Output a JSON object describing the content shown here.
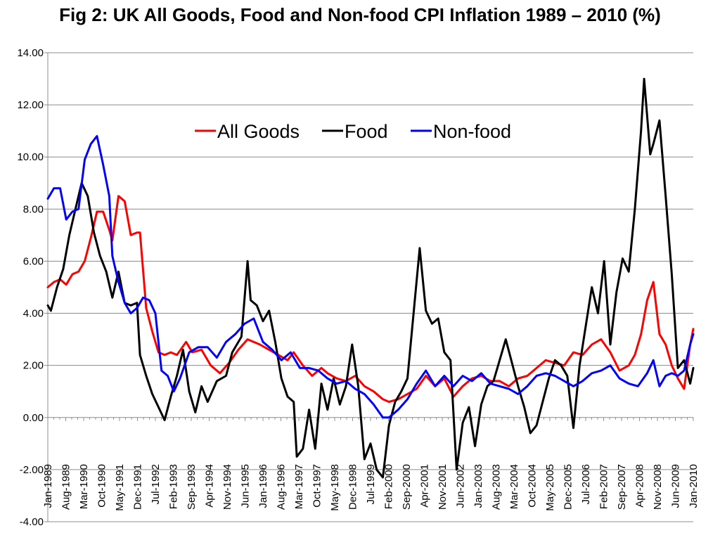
{
  "chart_data": {
    "type": "line",
    "title": "Fig 2: UK All Goods, Food and Non-food CPI Inflation 1989 – 2010 (%)",
    "xlabel": "",
    "ylabel": "",
    "xlim": [
      1989.0,
      2010.0
    ],
    "ylim": [
      -4.0,
      14.0
    ],
    "y_ticks": [
      -4.0,
      -2.0,
      0.0,
      2.0,
      4.0,
      6.0,
      8.0,
      10.0,
      12.0,
      14.0
    ],
    "y_tick_labels": [
      "-4.00",
      "-2.00",
      "0.00",
      "2.00",
      "4.00",
      "6.00",
      "8.00",
      "10.00",
      "12.00",
      "14.00"
    ],
    "x_tick_labels": [
      "Jan-1989",
      "Aug-1989",
      "Mar-1990",
      "Oct-1990",
      "May-1991",
      "Dec-1991",
      "Jul-1992",
      "Feb-1993",
      "Sep-1993",
      "Apr-1994",
      "Nov-1994",
      "Jun-1995",
      "Jan-1996",
      "Aug-1996",
      "Mar-1997",
      "Oct-1997",
      "May-1998",
      "Dec-1998",
      "Jul-1999",
      "Feb-2000",
      "Sep-2000",
      "Apr-2001",
      "Nov-2001",
      "Jun-2002",
      "Jan-2003",
      "Aug-2003",
      "Mar-2004",
      "Oct-2004",
      "May-2005",
      "Dec-2005",
      "Jul-2006",
      "Feb-2007",
      "Sep-2007",
      "Apr-2008",
      "Nov-2008",
      "Jun-2009",
      "Jan-2010"
    ],
    "grid": true,
    "legend": "top-center",
    "series": [
      {
        "name": "All Goods",
        "color": "#ff0000",
        "x": [
          1989.0,
          1989.2,
          1989.4,
          1989.6,
          1989.8,
          1990.0,
          1990.2,
          1990.4,
          1990.6,
          1990.8,
          1991.0,
          1991.1,
          1991.3,
          1991.5,
          1991.7,
          1991.9,
          1992.0,
          1992.2,
          1992.4,
          1992.6,
          1992.8,
          1993.0,
          1993.2,
          1993.5,
          1993.7,
          1994.0,
          1994.3,
          1994.6,
          1994.9,
          1995.2,
          1995.5,
          1995.9,
          1996.2,
          1996.5,
          1996.8,
          1997.0,
          1997.3,
          1997.6,
          1997.9,
          1998.1,
          1998.4,
          1998.7,
          1999.0,
          1999.3,
          1999.6,
          1999.9,
          2000.1,
          2000.4,
          2000.7,
          2001.0,
          2001.3,
          2001.6,
          2001.9,
          2002.2,
          2002.5,
          2002.8,
          2003.1,
          2003.4,
          2003.7,
          2004.0,
          2004.3,
          2004.6,
          2004.9,
          2005.2,
          2005.5,
          2005.8,
          2006.1,
          2006.4,
          2006.7,
          2007.0,
          2007.3,
          2007.6,
          2007.9,
          2008.1,
          2008.3,
          2008.5,
          2008.7,
          2008.9,
          2009.1,
          2009.3,
          2009.5,
          2009.7,
          2009.9,
          2010.0
        ],
        "values": [
          5.0,
          5.2,
          5.3,
          5.1,
          5.5,
          5.6,
          6.0,
          6.9,
          7.9,
          7.9,
          7.2,
          6.8,
          8.5,
          8.3,
          7.0,
          7.1,
          7.1,
          4.2,
          3.3,
          2.5,
          2.4,
          2.5,
          2.4,
          2.9,
          2.5,
          2.6,
          2.0,
          1.7,
          2.1,
          2.6,
          3.0,
          2.8,
          2.6,
          2.4,
          2.2,
          2.5,
          2.0,
          1.6,
          1.9,
          1.7,
          1.5,
          1.4,
          1.6,
          1.2,
          1.0,
          0.7,
          0.6,
          0.7,
          0.9,
          1.1,
          1.6,
          1.2,
          1.5,
          0.8,
          1.2,
          1.5,
          1.6,
          1.4,
          1.4,
          1.2,
          1.5,
          1.6,
          1.9,
          2.2,
          2.1,
          2.0,
          2.5,
          2.4,
          2.8,
          3.0,
          2.5,
          1.8,
          2.0,
          2.4,
          3.2,
          4.5,
          5.2,
          3.2,
          2.8,
          2.0,
          1.5,
          1.1,
          2.8,
          3.4
        ]
      },
      {
        "name": "Food",
        "color": "#000000",
        "x": [
          1989.0,
          1989.1,
          1989.3,
          1989.5,
          1989.7,
          1989.9,
          1990.1,
          1990.3,
          1990.5,
          1990.7,
          1990.9,
          1991.1,
          1991.3,
          1991.5,
          1991.7,
          1991.9,
          1992.0,
          1992.2,
          1992.4,
          1992.6,
          1992.8,
          1993.0,
          1993.2,
          1993.4,
          1993.6,
          1993.8,
          1994.0,
          1994.2,
          1994.5,
          1994.8,
          1995.0,
          1995.3,
          1995.5,
          1995.6,
          1995.8,
          1996.0,
          1996.2,
          1996.4,
          1996.6,
          1996.8,
          1997.0,
          1997.1,
          1997.3,
          1997.5,
          1997.7,
          1997.9,
          1998.1,
          1998.3,
          1998.5,
          1998.7,
          1998.9,
          1999.1,
          1999.3,
          1999.5,
          1999.7,
          1999.9,
          2000.1,
          2000.3,
          2000.5,
          2000.7,
          2000.9,
          2001.1,
          2001.3,
          2001.5,
          2001.7,
          2001.9,
          2002.1,
          2002.3,
          2002.5,
          2002.7,
          2002.9,
          2003.1,
          2003.3,
          2003.5,
          2003.7,
          2003.9,
          2004.1,
          2004.3,
          2004.5,
          2004.7,
          2004.9,
          2005.1,
          2005.3,
          2005.5,
          2005.7,
          2005.9,
          2006.1,
          2006.3,
          2006.5,
          2006.7,
          2006.9,
          2007.1,
          2007.3,
          2007.5,
          2007.7,
          2007.9,
          2008.1,
          2008.3,
          2008.4,
          2008.6,
          2008.7,
          2008.9,
          2009.1,
          2009.3,
          2009.5,
          2009.7,
          2009.9,
          2010.0
        ],
        "values": [
          4.3,
          4.1,
          5.0,
          5.7,
          7.0,
          8.0,
          9.0,
          8.5,
          7.1,
          6.2,
          5.6,
          4.6,
          5.6,
          4.4,
          4.3,
          4.4,
          2.4,
          1.6,
          0.9,
          0.4,
          -0.1,
          0.8,
          1.6,
          2.6,
          1.0,
          0.2,
          1.2,
          0.6,
          1.4,
          1.6,
          2.5,
          3.1,
          6.0,
          4.5,
          4.3,
          3.7,
          4.1,
          2.9,
          1.5,
          0.8,
          0.6,
          -1.5,
          -1.2,
          0.3,
          -1.2,
          1.3,
          0.3,
          1.5,
          0.5,
          1.2,
          2.8,
          1.2,
          -1.6,
          -1.0,
          -2.0,
          -2.3,
          -0.3,
          0.6,
          1.0,
          1.5,
          4.0,
          6.5,
          4.1,
          3.6,
          3.8,
          2.5,
          2.2,
          -2.0,
          -0.2,
          0.4,
          -1.1,
          0.5,
          1.2,
          1.4,
          2.2,
          3.0,
          2.1,
          1.2,
          0.4,
          -0.6,
          -0.3,
          0.6,
          1.5,
          2.2,
          2.0,
          1.6,
          -0.4,
          2.0,
          3.5,
          5.0,
          4.0,
          6.0,
          2.8,
          4.8,
          6.1,
          5.6,
          8.0,
          11.0,
          13.0,
          10.1,
          10.5,
          11.4,
          8.5,
          5.5,
          1.9,
          2.2,
          1.3,
          1.9
        ]
      },
      {
        "name": "Non-food",
        "color": "#0000ff",
        "x": [
          1989.0,
          1989.2,
          1989.4,
          1989.6,
          1989.8,
          1990.0,
          1990.2,
          1990.4,
          1990.6,
          1990.8,
          1991.0,
          1991.1,
          1991.3,
          1991.5,
          1991.7,
          1991.9,
          1992.1,
          1992.3,
          1992.5,
          1992.7,
          1992.9,
          1993.1,
          1993.3,
          1993.6,
          1993.9,
          1994.2,
          1994.5,
          1994.8,
          1995.1,
          1995.4,
          1995.7,
          1996.0,
          1996.3,
          1996.6,
          1996.9,
          1997.2,
          1997.5,
          1997.8,
          1998.1,
          1998.4,
          1998.7,
          1999.0,
          1999.3,
          1999.6,
          1999.9,
          2000.1,
          2000.4,
          2000.7,
          2001.0,
          2001.3,
          2001.6,
          2001.9,
          2002.2,
          2002.5,
          2002.8,
          2003.1,
          2003.4,
          2003.7,
          2004.0,
          2004.3,
          2004.6,
          2004.9,
          2005.2,
          2005.5,
          2005.8,
          2006.1,
          2006.4,
          2006.7,
          2007.0,
          2007.3,
          2007.6,
          2007.9,
          2008.2,
          2008.5,
          2008.7,
          2008.9,
          2009.1,
          2009.3,
          2009.5,
          2009.7,
          2009.9,
          2010.0
        ],
        "values": [
          8.4,
          8.8,
          8.8,
          7.6,
          7.9,
          8.0,
          9.9,
          10.5,
          10.8,
          9.7,
          8.5,
          6.2,
          5.2,
          4.4,
          4.0,
          4.2,
          4.6,
          4.5,
          4.0,
          1.8,
          1.6,
          1.0,
          1.5,
          2.5,
          2.7,
          2.7,
          2.3,
          2.9,
          3.2,
          3.6,
          3.8,
          2.9,
          2.6,
          2.2,
          2.5,
          1.9,
          1.9,
          1.8,
          1.5,
          1.3,
          1.4,
          1.1,
          0.9,
          0.5,
          0.0,
          0.0,
          0.3,
          0.7,
          1.3,
          1.8,
          1.2,
          1.6,
          1.2,
          1.6,
          1.4,
          1.7,
          1.3,
          1.2,
          1.1,
          0.9,
          1.2,
          1.6,
          1.7,
          1.6,
          1.4,
          1.2,
          1.4,
          1.7,
          1.8,
          2.0,
          1.5,
          1.3,
          1.2,
          1.7,
          2.2,
          1.2,
          1.6,
          1.7,
          1.6,
          1.8,
          2.8,
          3.2
        ]
      }
    ]
  }
}
